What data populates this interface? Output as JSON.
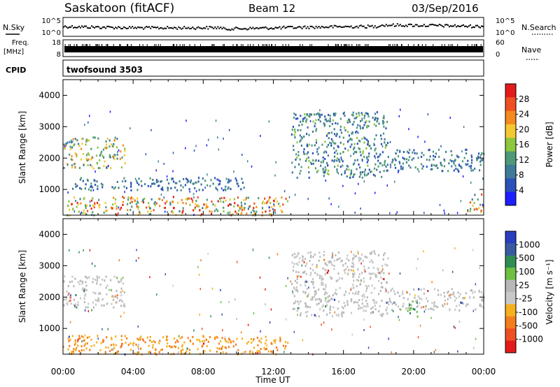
{
  "header": {
    "station": "Saskatoon (fitACF)",
    "beam": "Beam 12",
    "date": "03/Sep/2016"
  },
  "noise_panel": {
    "left_label": "N.Sky",
    "right_label": "N.Search",
    "tick_top": "10^5",
    "tick_bottom": "10^0",
    "right_tick_top": "10^5",
    "right_tick_bottom": "10^0"
  },
  "freq_panel": {
    "left_label_line1": "Freq.",
    "left_label_line2": "[MHz]",
    "right_label": "Nave",
    "tick_top": "18",
    "tick_bottom": "8",
    "right_tick_top": "60",
    "right_tick_bottom": "0"
  },
  "cpid": {
    "label": "CPID",
    "value": "twofsound 3503"
  },
  "colors": {
    "power_scale": [
      "#1e1eff",
      "#2a52b8",
      "#3f7a98",
      "#4e9a78",
      "#8cc73c",
      "#f4c832",
      "#f58a1e",
      "#ef4f22",
      "#e31b1b"
    ],
    "velocity_scale": [
      "#2a3ec0",
      "#3a5aa0",
      "#2f8c52",
      "#6ec040",
      "#b8b8b8",
      "#c8c8c8",
      "#f5b01e",
      "#f57d1e",
      "#ef4f22",
      "#e31b1b"
    ]
  },
  "chart_data": [
    {
      "type": "heatmap",
      "name": "power",
      "ylabel": "Slant Range [km]",
      "xlabel": "",
      "ylim": [
        180,
        4500
      ],
      "xlim": [
        0,
        24
      ],
      "yticks": [
        "1000",
        "2000",
        "3000",
        "4000"
      ],
      "colorbar": {
        "label": "Power [dB]",
        "range": [
          0,
          32
        ],
        "ticks": [
          "4",
          "8",
          "12",
          "16",
          "20",
          "24",
          "28"
        ]
      },
      "echo_regions": [
        {
          "time_start": 0.2,
          "time_end": 12.8,
          "range_start": 200,
          "range_end": 800,
          "peak_value": 28
        },
        {
          "time_start": 0.0,
          "time_end": 3.5,
          "range_start": 1700,
          "range_end": 2700,
          "peak_value": 22
        },
        {
          "time_start": 0.5,
          "time_end": 10.5,
          "range_start": 1000,
          "range_end": 1400,
          "peak_value": 12
        },
        {
          "time_start": 13.0,
          "time_end": 18.5,
          "range_start": 1400,
          "range_end": 3500,
          "peak_value": 14
        },
        {
          "time_start": 18.5,
          "time_end": 24.0,
          "range_start": 1600,
          "range_end": 2300,
          "peak_value": 12
        },
        {
          "time_start": 23.0,
          "time_end": 24.0,
          "range_start": 300,
          "range_end": 900,
          "peak_value": 26
        }
      ]
    },
    {
      "type": "heatmap",
      "name": "velocity",
      "ylabel": "Slant Range [km]",
      "xlabel": "Time UT",
      "ylim": [
        180,
        4500
      ],
      "xlim": [
        0,
        24
      ],
      "yticks": [
        "1000",
        "2000",
        "3000",
        "4000"
      ],
      "xticks": [
        "00:00",
        "04:00",
        "08:00",
        "12:00",
        "16:00",
        "20:00",
        "00:00"
      ],
      "colorbar": {
        "label": "Velocity [m s⁻¹]",
        "ticks": [
          "1000",
          "500",
          "100",
          "25",
          "-25",
          "-100",
          "-500",
          "-1000"
        ]
      },
      "echo_regions": [
        {
          "time_start": 0.2,
          "time_end": 12.8,
          "range_start": 200,
          "range_end": 800,
          "typical_velocity": -150
        },
        {
          "time_start": 0.0,
          "time_end": 3.5,
          "range_start": 1700,
          "range_end": 2700,
          "typical_velocity": 0
        },
        {
          "time_start": 13.0,
          "time_end": 18.5,
          "range_start": 1400,
          "range_end": 3500,
          "typical_velocity": 0
        },
        {
          "time_start": 18.5,
          "time_end": 24.0,
          "range_start": 1600,
          "range_end": 2300,
          "typical_velocity": 0
        },
        {
          "time_start": 19.5,
          "time_end": 20.2,
          "range_start": 1400,
          "range_end": 1900,
          "typical_velocity": 150
        }
      ]
    }
  ]
}
